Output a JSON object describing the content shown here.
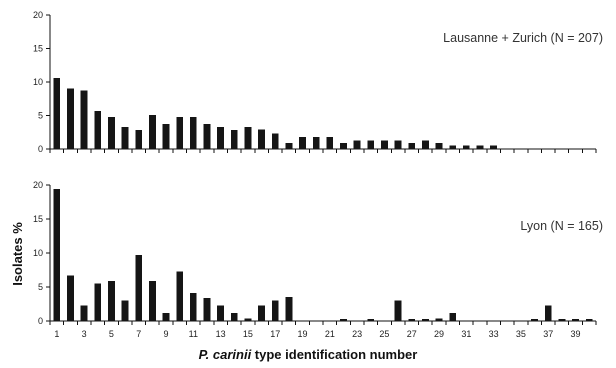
{
  "chart_data": [
    {
      "type": "bar",
      "label": "Lausanne + Zurich (N = 207)",
      "categories": [
        "1",
        "2",
        "3",
        "4",
        "5",
        "6",
        "7",
        "8",
        "9",
        "10",
        "11",
        "12",
        "13",
        "14",
        "15",
        "16",
        "17",
        "18",
        "19",
        "20",
        "21",
        "22",
        "23",
        "24",
        "25",
        "26",
        "27",
        "28",
        "29",
        "30",
        "31",
        "32",
        "33",
        "34",
        "35",
        "36",
        "37",
        "38",
        "39",
        "40"
      ],
      "values": [
        10.6,
        9.0,
        8.7,
        5.7,
        4.8,
        3.3,
        2.8,
        5.1,
        3.7,
        4.8,
        4.8,
        3.7,
        3.3,
        2.8,
        3.3,
        2.9,
        2.3,
        0.9,
        1.8,
        1.8,
        1.8,
        0.9,
        1.3,
        1.3,
        1.3,
        1.3,
        0.9,
        1.3,
        0.9,
        0.5,
        0.5,
        0.5,
        0.5,
        0,
        0,
        0,
        0,
        0,
        0,
        0
      ],
      "ylim": [
        0,
        20
      ],
      "yticks": [
        "0",
        "5",
        "10",
        "15",
        "20"
      ]
    },
    {
      "type": "bar",
      "label": "Lyon (N = 165)",
      "categories": [
        "1",
        "2",
        "3",
        "4",
        "5",
        "6",
        "7",
        "8",
        "9",
        "10",
        "11",
        "12",
        "13",
        "14",
        "15",
        "16",
        "17",
        "18",
        "19",
        "20",
        "21",
        "22",
        "23",
        "24",
        "25",
        "26",
        "27",
        "28",
        "29",
        "30",
        "31",
        "32",
        "33",
        "34",
        "35",
        "36",
        "37",
        "38",
        "39",
        "40"
      ],
      "values": [
        19.4,
        6.7,
        2.3,
        5.5,
        5.9,
        3.0,
        9.7,
        5.9,
        1.2,
        7.3,
        4.1,
        3.4,
        2.3,
        1.2,
        0.4,
        2.3,
        3.0,
        3.5,
        0,
        0,
        0,
        0.3,
        0,
        0.3,
        0,
        3.0,
        0.3,
        0.3,
        0.4,
        1.2,
        0,
        0,
        0,
        0,
        0,
        0.3,
        2.3,
        0.3,
        0.3,
        0.3
      ],
      "ylim": [
        0,
        20
      ],
      "yticks": [
        "0",
        "5",
        "10",
        "15",
        "20"
      ]
    }
  ],
  "axes": {
    "x_tick_labels": [
      "1",
      "3",
      "5",
      "7",
      "9",
      "11",
      "13",
      "15",
      "17",
      "19",
      "21",
      "23",
      "25",
      "27",
      "29",
      "31",
      "33",
      "35",
      "37",
      "39"
    ],
    "ylabel": "Isolates %",
    "xlabel_italic": "P. carinii",
    "xlabel_rest": " type identification number"
  },
  "colors": {
    "bar": "#151515",
    "axis": "#111111"
  }
}
